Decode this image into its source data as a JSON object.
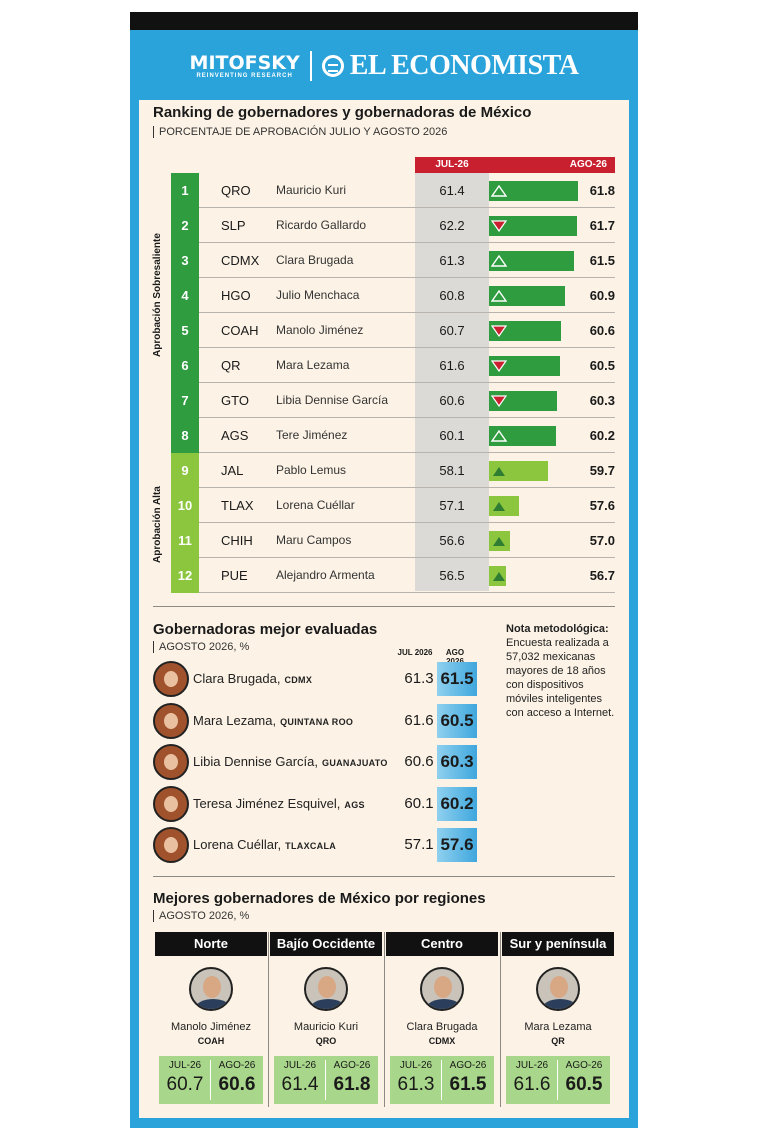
{
  "header": {
    "mitofsky": "MITOFSKY",
    "mitofsky_sub": "REINVENTING RESEARCH",
    "economista": "EL ECONOMISTA"
  },
  "colors": {
    "dark_green": "#2e9c3f",
    "light_green": "#8cc63f",
    "red": "#c8202f",
    "blue": "#2aa3db"
  },
  "chart_data": [
    {
      "type": "bar",
      "title": "Ranking de gobernadores y gobernadoras de México",
      "subtitle": "PORCENTAJE DE APROBACIÓN JULIO Y AGOSTO 2026",
      "col_jul": "JUL-26",
      "col_ago": "AGO-26",
      "group_labels": [
        "Aprobación Sobresaliente",
        "Aprobación Alta"
      ],
      "rows": [
        {
          "rank": "1",
          "state": "QRO",
          "name": "Mauricio Kuri",
          "jul": "61.4",
          "ago": "61.8",
          "trend": "up",
          "group": 0
        },
        {
          "rank": "2",
          "state": "SLP",
          "name": "Ricardo Gallardo",
          "jul": "62.2",
          "ago": "61.7",
          "trend": "down",
          "group": 0
        },
        {
          "rank": "3",
          "state": "CDMX",
          "name": "Clara Brugada",
          "jul": "61.3",
          "ago": "61.5",
          "trend": "up",
          "group": 0
        },
        {
          "rank": "4",
          "state": "HGO",
          "name": "Julio Menchaca",
          "jul": "60.8",
          "ago": "60.9",
          "trend": "up",
          "group": 0
        },
        {
          "rank": "5",
          "state": "COAH",
          "name": "Manolo Jiménez",
          "jul": "60.7",
          "ago": "60.6",
          "trend": "down",
          "group": 0
        },
        {
          "rank": "6",
          "state": "QR",
          "name": "Mara Lezama",
          "jul": "61.6",
          "ago": "60.5",
          "trend": "down",
          "group": 0
        },
        {
          "rank": "7",
          "state": "GTO",
          "name": "Libia Dennise García",
          "jul": "60.6",
          "ago": "60.3",
          "trend": "down",
          "group": 0
        },
        {
          "rank": "8",
          "state": "AGS",
          "name": "Tere Jiménez",
          "jul": "60.1",
          "ago": "60.2",
          "trend": "up",
          "group": 0
        },
        {
          "rank": "9",
          "state": "JAL",
          "name": "Pablo Lemus",
          "jul": "58.1",
          "ago": "59.7",
          "trend": "up",
          "group": 1
        },
        {
          "rank": "10",
          "state": "TLAX",
          "name": "Lorena Cuéllar",
          "jul": "57.1",
          "ago": "57.6",
          "trend": "up",
          "group": 1
        },
        {
          "rank": "11",
          "state": "CHIH",
          "name": "Maru Campos",
          "jul": "56.6",
          "ago": "57.0",
          "trend": "up",
          "group": 1
        },
        {
          "rank": "12",
          "state": "PUE",
          "name": "Alejandro Armenta",
          "jul": "56.5",
          "ago": "56.7",
          "trend": "up",
          "group": 1
        }
      ]
    },
    {
      "type": "table",
      "title": "Gobernadoras mejor evaluadas",
      "subtitle": "AGOSTO 2026, %",
      "col_jul": "JUL 2026",
      "col_ago": "AGO 2026",
      "rows": [
        {
          "name": "Clara Brugada,",
          "state": "CDMX",
          "jul": "61.3",
          "ago": "61.5"
        },
        {
          "name": "Mara Lezama,",
          "state": "QUINTANA ROO",
          "jul": "61.6",
          "ago": "60.5"
        },
        {
          "name": "Libia Dennise García,",
          "state": "GUANAJUATO",
          "jul": "60.6",
          "ago": "60.3"
        },
        {
          "name": "Teresa Jiménez Esquivel,",
          "state": "AGS",
          "jul": "60.1",
          "ago": "60.2"
        },
        {
          "name": "Lorena Cuéllar,",
          "state": "TLAXCALA",
          "jul": "57.1",
          "ago": "57.6"
        }
      ]
    },
    {
      "type": "table",
      "title": "Mejores gobernadores de México por regiones",
      "subtitle": "AGOSTO 2026, %",
      "regions": [
        {
          "region": "Norte",
          "name": "Manolo Jiménez",
          "state": "COAH",
          "jul_label": "JUL-26",
          "ago_label": "AGO-26",
          "jul": "60.7",
          "ago": "60.6"
        },
        {
          "region": "Bajío Occidente",
          "name": "Mauricio Kuri",
          "state": "QRO",
          "jul_label": "JUL-26",
          "ago_label": "AGO-26",
          "jul": "61.4",
          "ago": "61.8"
        },
        {
          "region": "Centro",
          "name": "Clara Brugada",
          "state": "CDMX",
          "jul_label": "JUL-26",
          "ago_label": "AGO-26",
          "jul": "61.3",
          "ago": "61.5"
        },
        {
          "region": "Sur y península",
          "name": "Mara Lezama",
          "state": "QR",
          "jul_label": "JUL-26",
          "ago_label": "AGO-26",
          "jul": "61.6",
          "ago": "60.5"
        }
      ]
    }
  ],
  "nota": {
    "title": "Nota metodológica:",
    "text": "Encuesta realizada a 57,032 mexicanas mayores de 18 años con dispositivos móviles inteligentes con acceso a Internet."
  }
}
